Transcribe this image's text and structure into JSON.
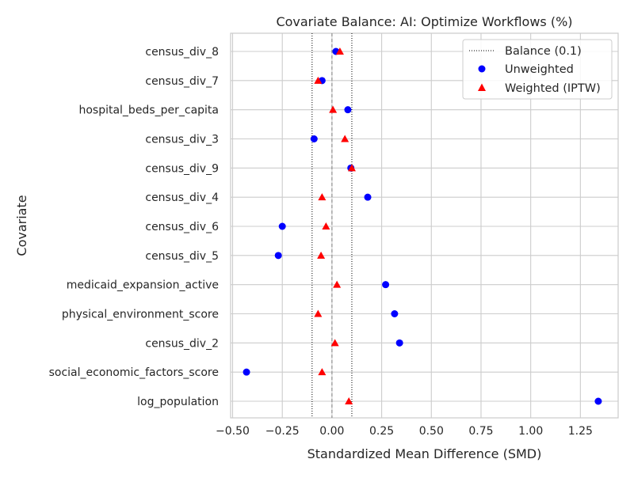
{
  "chart_data": {
    "type": "scatter",
    "title": "Covariate Balance: AI: Optimize Workflows (%)",
    "xlabel": "Standardized Mean Difference (SMD)",
    "ylabel": "Covariate",
    "xlim": [
      -0.51,
      1.44
    ],
    "xticks": [
      -0.5,
      -0.25,
      0.0,
      0.25,
      0.5,
      0.75,
      1.0,
      1.25
    ],
    "xtick_labels": [
      "−0.50",
      "−0.25",
      "0.00",
      "0.25",
      "0.50",
      "0.75",
      "1.00",
      "1.25"
    ],
    "grid": true,
    "legend_position": "top-right",
    "categories": [
      "census_div_8",
      "census_div_7",
      "hospital_beds_per_capita",
      "census_div_3",
      "census_div_9",
      "census_div_4",
      "census_div_6",
      "census_div_5",
      "medicaid_expansion_active",
      "physical_environment_score",
      "census_div_2",
      "social_economic_factors_score",
      "log_population"
    ],
    "series": [
      {
        "name": "Unweighted",
        "marker": "circle",
        "color": "#0000ff",
        "values": [
          0.02,
          -0.05,
          0.08,
          -0.09,
          0.095,
          0.18,
          -0.25,
          -0.27,
          0.27,
          0.315,
          0.34,
          -0.43,
          1.34
        ]
      },
      {
        "name": "Weighted (IPTW)",
        "marker": "triangle",
        "color": "#ff0000",
        "values": [
          0.04,
          -0.07,
          0.005,
          0.065,
          0.1,
          -0.05,
          -0.03,
          -0.055,
          0.025,
          -0.07,
          0.015,
          -0.05,
          0.085
        ]
      }
    ],
    "reference_lines": [
      {
        "name": "Balance (0.1)",
        "values": [
          -0.1,
          0.1
        ],
        "style": "dotted",
        "color": "#000000"
      },
      {
        "value": 0.0,
        "style": "dashed",
        "color": "#808080"
      }
    ]
  }
}
